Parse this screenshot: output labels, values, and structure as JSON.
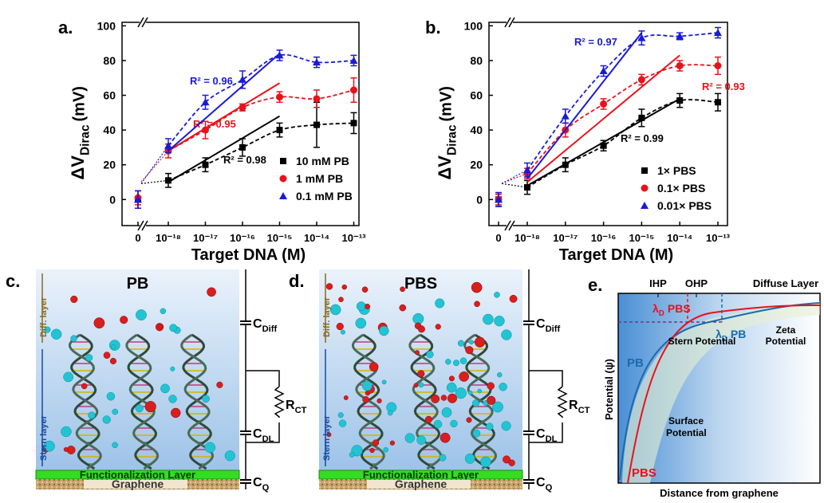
{
  "chart_data": [
    {
      "type": "scatter",
      "panel_label": "a.",
      "x_label": "Target DNA (M)",
      "y_label": {
        "main": "ΔV",
        "sub": "Dirac",
        "unit": "(mV)"
      },
      "categories": [
        "0",
        "10⁻¹⁸",
        "10⁻¹⁷",
        "10⁻¹⁶",
        "10⁻¹⁵",
        "10⁻¹⁴",
        "10⁻¹³"
      ],
      "ylim": [
        -15,
        102
      ],
      "yticks": [
        0,
        20,
        40,
        60,
        80,
        100
      ],
      "legend": "lower right",
      "series": [
        {
          "name": "10 mM PB",
          "color": "#000000",
          "marker": "square",
          "values": [
            0,
            11,
            20,
            30,
            40,
            43,
            44
          ],
          "errors": [
            5,
            4,
            4,
            5,
            4,
            13,
            6
          ],
          "fit": {
            "x": [
              "10⁻¹⁸",
              "10⁻¹⁵"
            ],
            "y": [
              10,
              48
            ]
          },
          "r2_label": "R² = 0.98"
        },
        {
          "name": "1 mM PB",
          "color": "#e8121b",
          "marker": "circle",
          "values": [
            1,
            28,
            40,
            53,
            59,
            58,
            63
          ],
          "errors": [
            4,
            4,
            5,
            2,
            3,
            5,
            7
          ],
          "fit": {
            "x": [
              "10⁻¹⁸",
              "10⁻¹⁵"
            ],
            "y": [
              28,
              67
            ]
          },
          "r2_label": "R² = 0.95"
        },
        {
          "name": "0.1 mM PB",
          "color": "#1a1ad6",
          "marker": "triangle",
          "values": [
            0,
            31,
            56,
            69,
            83,
            79,
            80
          ],
          "errors": [
            5,
            4,
            4,
            5,
            3,
            3,
            3
          ],
          "fit": {
            "x": [
              "10⁻¹⁸",
              "10⁻¹⁵"
            ],
            "y": [
              28,
              84
            ]
          },
          "r2_label": "R² = 0.96"
        }
      ]
    },
    {
      "type": "scatter",
      "panel_label": "b.",
      "x_label": "Target DNA (M)",
      "y_label": {
        "main": "ΔV",
        "sub": "Dirac",
        "unit": "(mV)"
      },
      "categories": [
        "0",
        "10⁻¹⁸",
        "10⁻¹⁷",
        "10⁻¹⁶",
        "10⁻¹⁵",
        "10⁻¹⁴",
        "10⁻¹³"
      ],
      "ylim": [
        -15,
        102
      ],
      "yticks": [
        0,
        20,
        40,
        60,
        80,
        100
      ],
      "legend": "lower right",
      "series": [
        {
          "name": "1× PBS",
          "color": "#000000",
          "marker": "square",
          "values": [
            0,
            7,
            20,
            31,
            47,
            57,
            56
          ],
          "errors": [
            4,
            4,
            4,
            3,
            5,
            4,
            5
          ],
          "fit": {
            "x": [
              "10⁻¹⁸",
              "10⁻¹⁴"
            ],
            "y": [
              8,
              58
            ]
          },
          "r2_label": "R² = 0.99"
        },
        {
          "name": "0.1× PBS",
          "color": "#e8121b",
          "marker": "circle",
          "values": [
            0,
            15,
            40,
            55,
            69,
            77,
            77
          ],
          "errors": [
            3,
            3,
            4,
            3,
            3,
            3,
            5
          ],
          "fit": {
            "x": [
              "10⁻¹⁸",
              "10⁻¹⁴"
            ],
            "y": [
              10,
              83
            ]
          },
          "r2_label": "R² = 0.93"
        },
        {
          "name": "0.01× PBS",
          "color": "#1a1ad6",
          "marker": "triangle",
          "values": [
            0,
            17,
            48,
            74,
            93,
            94,
            96
          ],
          "errors": [
            4,
            4,
            4,
            3,
            4,
            2,
            3
          ],
          "fit": {
            "x": [
              "10⁻¹⁸",
              "10⁻¹⁵"
            ],
            "y": [
              12,
              96
            ]
          },
          "r2_label": "R² = 0.97"
        }
      ]
    }
  ],
  "panels": {
    "c": {
      "label": "c.",
      "title": "PB",
      "diff_layer": "Diff. layer",
      "stern_layer": "Stern layer",
      "functionalization": "Functionalization Layer",
      "graphene": "Graphene",
      "c_diff": {
        "main": "C",
        "sub": "Diff"
      },
      "c_dl": {
        "main": "C",
        "sub": "DL"
      },
      "r_ct": {
        "main": "R",
        "sub": "CT"
      },
      "c_q": {
        "main": "C",
        "sub": "Q"
      }
    },
    "d": {
      "label": "d.",
      "title": "PBS",
      "diff_layer": "Diff. layer",
      "stern_layer": "Stern layer",
      "functionalization": "Functionalization Layer",
      "graphene": "Graphene",
      "c_diff": {
        "main": "C",
        "sub": "Diff"
      },
      "c_dl": {
        "main": "C",
        "sub": "DL"
      },
      "r_ct": {
        "main": "R",
        "sub": "CT"
      },
      "c_q": {
        "main": "C",
        "sub": "Q"
      }
    },
    "e": {
      "label": "e.",
      "ihp": "IHP",
      "ohp": "OHP",
      "diffuse": "Diffuse Layer",
      "lambda_pbs": {
        "main": "λ",
        "sub": "D",
        "rest": "PBS"
      },
      "lambda_pb": {
        "main": "λ",
        "sub": "D",
        "rest": "PB"
      },
      "zeta": [
        "Zeta",
        "Potential"
      ],
      "stern": "Stern Potential",
      "pb": "PB",
      "surface": [
        "Surface",
        "Potential"
      ],
      "pbs": "PBS",
      "y_label": "Potential (ψ)",
      "x_label": "Distance from graphene"
    }
  }
}
